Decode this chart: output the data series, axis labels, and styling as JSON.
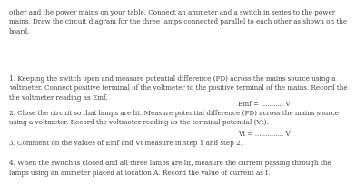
{
  "background_color": "#ffffff",
  "text_color": "#404040",
  "font_size": 5.2,
  "paragraph1": "other and the power mains on your table. Connect an ammeter and a switch in series to the power\nmains. Draw the circuit diagram for the three lamps connected parallel to each other as shown on the\nboard.",
  "question1": "1. Keeping the switch open and measure potential difference (PD) across the mains source using a\nvoltmeter. Connect positive terminal of the voltmeter to the positive terminal of the mains. Record the\nthe voltmeter reading as Emf.",
  "answer1": "Emf = ........... V",
  "question2": "2. Close the circuit so that lamps are lit. Measure potential difference (PD) across the mains source\nusing a voltmeter. Record the voltmeter reading as the terminal potential (Vt).",
  "answer2": "Vt = .............. V",
  "question3": "3. Comment on the values of Emf and Vt measure in step 1 and step 2.",
  "question4": "4. When the switch is closed and all three lamps are lit, measure the current passing through the\nlamps using an ammeter placed at location A. Record the value of current as I."
}
